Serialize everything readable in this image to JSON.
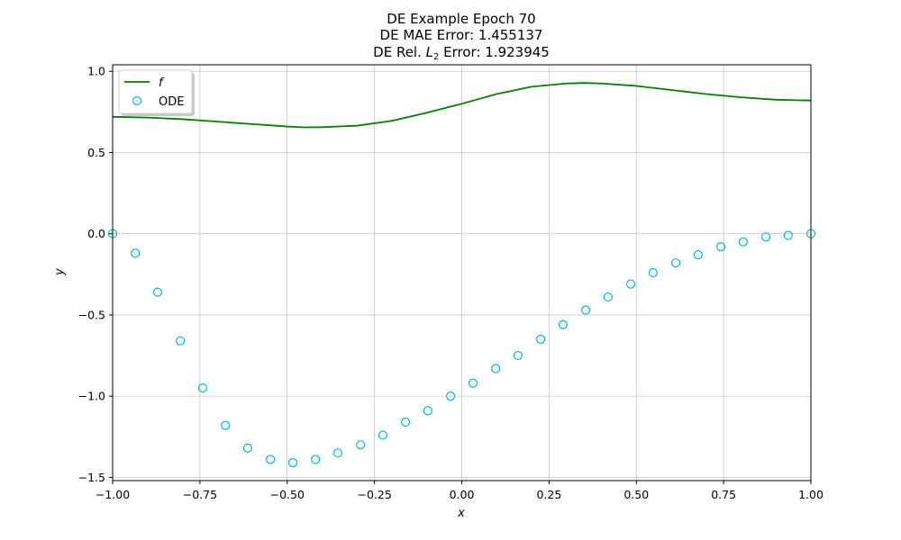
{
  "chart_data": {
    "type": "line",
    "title": "DE Example Epoch 70",
    "subtitle_lines": [
      "DE MAE Error: 1.455137"
    ],
    "rel_error": {
      "prefix": "DE Rel. ",
      "symbol": "L",
      "subscript": "2",
      "suffix": " Error: 1.923945"
    },
    "xlabel": "x",
    "ylabel": "y",
    "xlim": [
      -1.0,
      1.0
    ],
    "ylim": [
      -1.52,
      1.04
    ],
    "xticks": [
      -1.0,
      -0.75,
      -0.5,
      -0.25,
      0.0,
      0.25,
      0.5,
      0.75,
      1.0
    ],
    "xtick_labels": [
      "−1.00",
      "−0.75",
      "−0.50",
      "−0.25",
      "0.00",
      "0.25",
      "0.50",
      "0.75",
      "1.00"
    ],
    "yticks": [
      -1.5,
      -1.0,
      -0.5,
      0.0,
      0.5,
      1.0
    ],
    "ytick_labels": [
      "−1.5",
      "−1.0",
      "−0.5",
      "0.0",
      "0.5",
      "1.0"
    ],
    "grid": true,
    "legend_placement": "upper-left",
    "series": [
      {
        "name": "f",
        "kind": "line",
        "color": "#008000",
        "x": [
          -1.0,
          -0.9,
          -0.8,
          -0.7,
          -0.6,
          -0.5,
          -0.45,
          -0.4,
          -0.3,
          -0.2,
          -0.1,
          0.0,
          0.1,
          0.2,
          0.3,
          0.35,
          0.4,
          0.5,
          0.6,
          0.7,
          0.8,
          0.9,
          1.0
        ],
        "y": [
          0.72,
          0.715,
          0.705,
          0.69,
          0.675,
          0.66,
          0.655,
          0.656,
          0.665,
          0.695,
          0.745,
          0.8,
          0.86,
          0.905,
          0.925,
          0.928,
          0.925,
          0.91,
          0.885,
          0.86,
          0.84,
          0.825,
          0.82
        ]
      },
      {
        "name": "ODE",
        "kind": "scatter",
        "color": "#00bfbf",
        "x": [
          -1.0,
          -0.935,
          -0.871,
          -0.806,
          -0.742,
          -0.677,
          -0.613,
          -0.548,
          -0.484,
          -0.419,
          -0.355,
          -0.29,
          -0.226,
          -0.161,
          -0.097,
          -0.032,
          0.032,
          0.097,
          0.161,
          0.226,
          0.29,
          0.355,
          0.419,
          0.484,
          0.548,
          0.613,
          0.677,
          0.742,
          0.806,
          0.871,
          0.935,
          1.0
        ],
        "y": [
          0.0,
          -0.12,
          -0.36,
          -0.66,
          -0.95,
          -1.18,
          -1.32,
          -1.39,
          -1.41,
          -1.39,
          -1.35,
          -1.3,
          -1.24,
          -1.16,
          -1.09,
          -1.0,
          -0.92,
          -0.83,
          -0.75,
          -0.65,
          -0.56,
          -0.47,
          -0.39,
          -0.31,
          -0.24,
          -0.18,
          -0.13,
          -0.08,
          -0.05,
          -0.02,
          -0.01,
          0.0
        ]
      }
    ]
  }
}
